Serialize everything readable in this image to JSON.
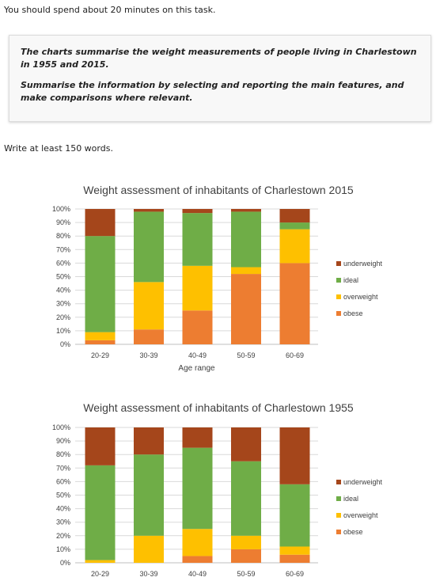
{
  "instructions": {
    "time": "You should spend about 20 minutes on this task.",
    "prompt_line1": "The charts summarise the weight measurements of people living in Charlestown in 1955 and 2015.",
    "prompt_line2": "Summarise the information by selecting and reporting the main features, and make comparisons where relevant.",
    "word_count": "Write at least 150 words."
  },
  "colors": {
    "underweight": "#a5461b",
    "ideal": "#6fad47",
    "overweight": "#fec000",
    "obese": "#ed7d31"
  },
  "chart_data": [
    {
      "type": "bar",
      "stacked": true,
      "percent": true,
      "title": "Weight assessment of inhabitants of Charlestown 2015",
      "xlabel": "Age range",
      "ylabel": "",
      "ylim": [
        0,
        100
      ],
      "yticks": [
        "0%",
        "10%",
        "20%",
        "30%",
        "40%",
        "50%",
        "60%",
        "70%",
        "80%",
        "90%",
        "100%"
      ],
      "categories": [
        "20-29",
        "30-39",
        "40-49",
        "50-59",
        "60-69"
      ],
      "legend_position": "right",
      "series": [
        {
          "name": "obese",
          "values": [
            3,
            11,
            25,
            52,
            60
          ]
        },
        {
          "name": "overweight",
          "values": [
            6,
            35,
            33,
            5,
            25
          ]
        },
        {
          "name": "ideal",
          "values": [
            71,
            52,
            39,
            41,
            5
          ]
        },
        {
          "name": "underweight",
          "values": [
            20,
            2,
            3,
            2,
            10
          ]
        }
      ]
    },
    {
      "type": "bar",
      "stacked": true,
      "percent": true,
      "title": "Weight assessment of inhabitants of Charlestown 1955",
      "xlabel": "",
      "ylabel": "",
      "ylim": [
        0,
        100
      ],
      "yticks": [
        "0%",
        "10%",
        "20%",
        "30%",
        "40%",
        "50%",
        "60%",
        "70%",
        "80%",
        "90%",
        "100%"
      ],
      "categories": [
        "20-29",
        "30-39",
        "40-49",
        "50-59",
        "60-69"
      ],
      "legend_position": "right",
      "series": [
        {
          "name": "obese",
          "values": [
            0,
            0,
            5,
            10,
            6
          ]
        },
        {
          "name": "overweight",
          "values": [
            2,
            20,
            20,
            10,
            6
          ]
        },
        {
          "name": "ideal",
          "values": [
            70,
            60,
            60,
            55,
            46
          ]
        },
        {
          "name": "underweight",
          "values": [
            28,
            20,
            15,
            25,
            42
          ]
        }
      ]
    }
  ]
}
